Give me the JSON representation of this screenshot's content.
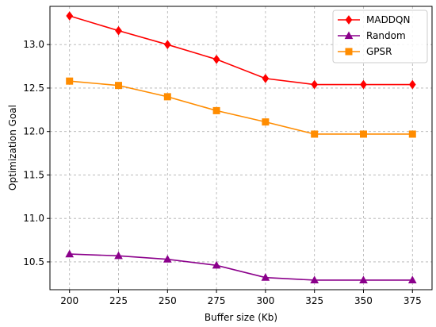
{
  "chart_data": {
    "type": "line",
    "title": "",
    "xlabel": "Buffer size (Kb)",
    "ylabel": "Optimization Goal",
    "x": [
      200,
      225,
      250,
      275,
      300,
      325,
      350,
      375
    ],
    "xlim": [
      190,
      385
    ],
    "ylim": [
      10.18,
      13.44
    ],
    "xticks": [
      "200",
      "225",
      "250",
      "275",
      "300",
      "325",
      "350",
      "375"
    ],
    "yticks": [
      "10.5",
      "11.0",
      "11.5",
      "12.0",
      "12.5",
      "13.0"
    ],
    "ytick_values": [
      10.5,
      11.0,
      11.5,
      12.0,
      12.5,
      13.0
    ],
    "grid": true,
    "legend_position": "top-right",
    "series": [
      {
        "name": "MADDQN",
        "color": "#ff0000",
        "marker": "diamond",
        "values": [
          13.33,
          13.16,
          13.0,
          12.83,
          12.61,
          12.54,
          12.54,
          12.54
        ]
      },
      {
        "name": "Random",
        "color": "#8b008b",
        "marker": "triangle",
        "values": [
          10.59,
          10.57,
          10.53,
          10.46,
          10.32,
          10.29,
          10.29,
          10.29
        ]
      },
      {
        "name": "GPSR",
        "color": "#ff8c00",
        "marker": "square",
        "values": [
          12.58,
          12.53,
          12.4,
          12.24,
          12.11,
          11.97,
          11.97,
          11.97
        ]
      }
    ]
  }
}
